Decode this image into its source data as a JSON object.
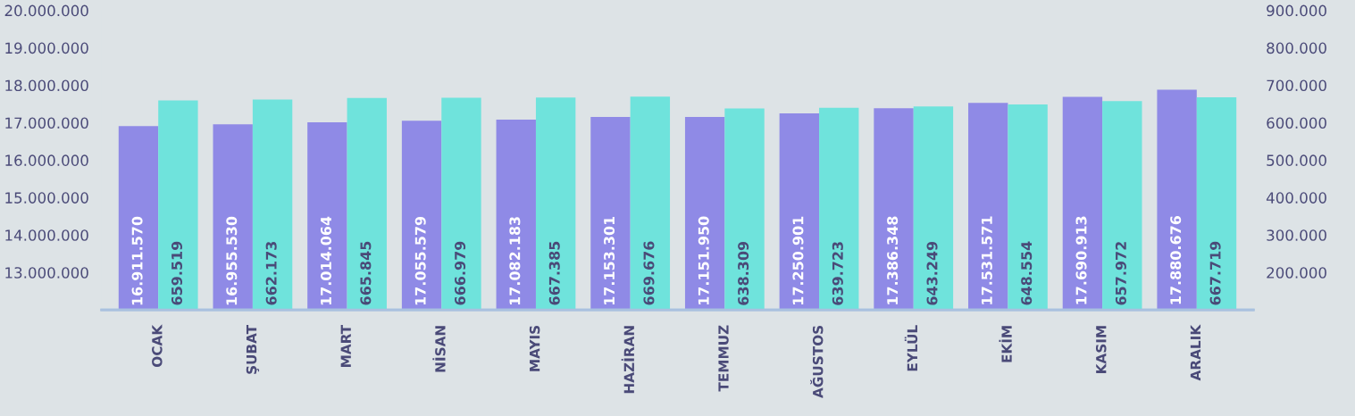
{
  "chart_data": {
    "type": "bar",
    "categories": [
      "OCAK",
      "ŞUBAT",
      "MART",
      "NİSAN",
      "MAYIS",
      "HAZİRAN",
      "TEMMUZ",
      "AĞUSTOS",
      "EYLÜL",
      "EKİM",
      "KASIM",
      "ARALIK"
    ],
    "series": [
      {
        "color": "#8f8ae6",
        "values": [
          16911570,
          16955530,
          17014064,
          17055579,
          17082183,
          17153301,
          17151950,
          17250901,
          17386348,
          17531571,
          17690913,
          17880676
        ],
        "value_labels": [
          "16.911.570",
          "16.955.530",
          "17.014.064",
          "17.055.579",
          "17.082.183",
          "17.153.301",
          "17.151.950",
          "17.250.901",
          "17.386.348",
          "17.531.571",
          "17.690.913",
          "17.880.676"
        ]
      },
      {
        "color": "#6fe3dc",
        "axis": "y2",
        "values": [
          659519,
          662173,
          665845,
          666979,
          667385,
          669676,
          638309,
          639723,
          643249,
          648554,
          657972,
          667719
        ],
        "value_labels": [
          "659.519",
          "662.173",
          "665.845",
          "666.979",
          "667.385",
          "669.676",
          "638.309",
          "639.723",
          "643.249",
          "648.554",
          "657.972",
          "667.719"
        ]
      }
    ],
    "ylim": [
      12000000,
      20000000
    ],
    "yticks": [
      {
        "value": 13000000,
        "label": "13.000.000"
      },
      {
        "value": 14000000,
        "label": "14.000.000"
      },
      {
        "value": 15000000,
        "label": "15.000.000"
      },
      {
        "value": 16000000,
        "label": "16.000.000"
      },
      {
        "value": 17000000,
        "label": "17.000.000"
      },
      {
        "value": 18000000,
        "label": "18.000.000"
      },
      {
        "value": 19000000,
        "label": "19.000.000"
      },
      {
        "value": 20000000,
        "label": "20.000.000"
      }
    ],
    "y2lim": [
      100000,
      900000
    ],
    "y2ticks": [
      {
        "value": 200000,
        "label": "200.000"
      },
      {
        "value": 300000,
        "label": "300.000"
      },
      {
        "value": 400000,
        "label": "400.000"
      },
      {
        "value": 500000,
        "label": "500.000"
      },
      {
        "value": 600000,
        "label": "600.000"
      },
      {
        "value": 700000,
        "label": "700.000"
      },
      {
        "value": 800000,
        "label": "800.000"
      },
      {
        "value": 900000,
        "label": "900.000"
      }
    ],
    "grid": false,
    "legend": false
  }
}
